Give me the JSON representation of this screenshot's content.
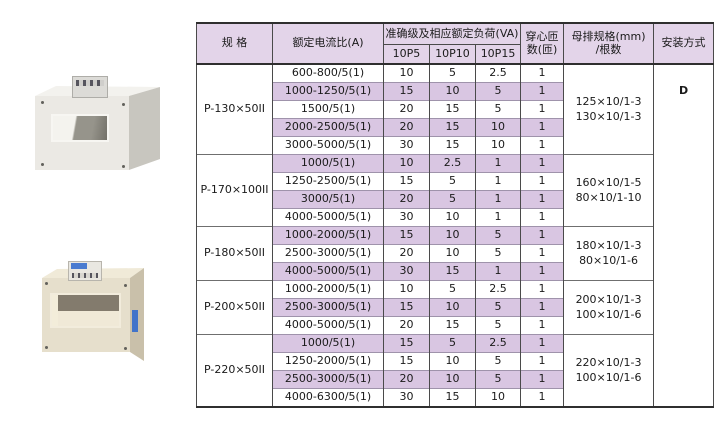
{
  "colors": {
    "header_bg": "#e3d4e9",
    "stripe_bg": "#d9c6e2",
    "row_bg": "#ffffff",
    "grid_dark": "#4a4a4a",
    "grid_light": "#9f93ab",
    "outer_border": "#2f2f2f",
    "text": "#1a1a1a",
    "label_blue": "#4173c9"
  },
  "photos": {
    "top_photo": "current-transformer-rectangular-window",
    "bottom_photo": "current-transformer-wide-window"
  },
  "table": {
    "headers": {
      "spec": "规 格",
      "ratio": "额定电流比(A)",
      "accuracy": "准确级及相应额定负荷(VA)",
      "sub": [
        "10P5",
        "10P10",
        "10P15"
      ],
      "turns1": "穿心匝",
      "turns2": "数(匝)",
      "busbar1": "母排规格(mm)",
      "busbar2": "/根数",
      "install": "安装方式"
    },
    "install_value": "D",
    "groups": [
      {
        "spec": "P-130×50II",
        "busbar": [
          "125×10/1-3",
          "130×10/1-3"
        ],
        "rows": [
          {
            "ratio": "600-800/5(1)",
            "p5": "10",
            "p10": "5",
            "p15": "2.5",
            "turns": "1"
          },
          {
            "ratio": "1000-1250/5(1)",
            "p5": "15",
            "p10": "10",
            "p15": "5",
            "turns": "1"
          },
          {
            "ratio": "1500/5(1)",
            "p5": "20",
            "p10": "15",
            "p15": "5",
            "turns": "1"
          },
          {
            "ratio": "2000-2500/5(1)",
            "p5": "20",
            "p10": "15",
            "p15": "10",
            "turns": "1"
          },
          {
            "ratio": "3000-5000/5(1)",
            "p5": "30",
            "p10": "15",
            "p15": "10",
            "turns": "1"
          }
        ]
      },
      {
        "spec": "P-170×100II",
        "busbar": [
          "160×10/1-5",
          "80×10/1-10"
        ],
        "rows": [
          {
            "ratio": "1000/5(1)",
            "p5": "10",
            "p10": "2.5",
            "p15": "1",
            "turns": "1"
          },
          {
            "ratio": "1250-2500/5(1)",
            "p5": "15",
            "p10": "5",
            "p15": "1",
            "turns": "1"
          },
          {
            "ratio": "3000/5(1)",
            "p5": "20",
            "p10": "5",
            "p15": "1",
            "turns": "1"
          },
          {
            "ratio": "4000-5000/5(1)",
            "p5": "30",
            "p10": "10",
            "p15": "1",
            "turns": "1"
          }
        ]
      },
      {
        "spec": "P-180×50II",
        "busbar": [
          "180×10/1-3",
          "80×10/1-6"
        ],
        "rows": [
          {
            "ratio": "1000-2000/5(1)",
            "p5": "15",
            "p10": "10",
            "p15": "5",
            "turns": "1"
          },
          {
            "ratio": "2500-3000/5(1)",
            "p5": "20",
            "p10": "10",
            "p15": "5",
            "turns": "1"
          },
          {
            "ratio": "4000-5000/5(1)",
            "p5": "30",
            "p10": "15",
            "p15": "1",
            "turns": "1"
          }
        ]
      },
      {
        "spec": "P-200×50II",
        "busbar": [
          "200×10/1-3",
          "100×10/1-6"
        ],
        "rows": [
          {
            "ratio": "1000-2000/5(1)",
            "p5": "10",
            "p10": "5",
            "p15": "2.5",
            "turns": "1"
          },
          {
            "ratio": "2500-3000/5(1)",
            "p5": "15",
            "p10": "10",
            "p15": "5",
            "turns": "1"
          },
          {
            "ratio": "4000-5000/5(1)",
            "p5": "20",
            "p10": "15",
            "p15": "5",
            "turns": "1"
          }
        ]
      },
      {
        "spec": "P-220×50II",
        "busbar": [
          "220×10/1-3",
          "100×10/1-6"
        ],
        "rows": [
          {
            "ratio": "1000/5(1)",
            "p5": "15",
            "p10": "5",
            "p15": "2.5",
            "turns": "1"
          },
          {
            "ratio": "1250-2000/5(1)",
            "p5": "15",
            "p10": "10",
            "p15": "5",
            "turns": "1"
          },
          {
            "ratio": "2500-3000/5(1)",
            "p5": "20",
            "p10": "10",
            "p15": "5",
            "turns": "1"
          },
          {
            "ratio": "4000-6300/5(1)",
            "p5": "30",
            "p10": "15",
            "p15": "10",
            "turns": "1"
          }
        ]
      }
    ]
  }
}
